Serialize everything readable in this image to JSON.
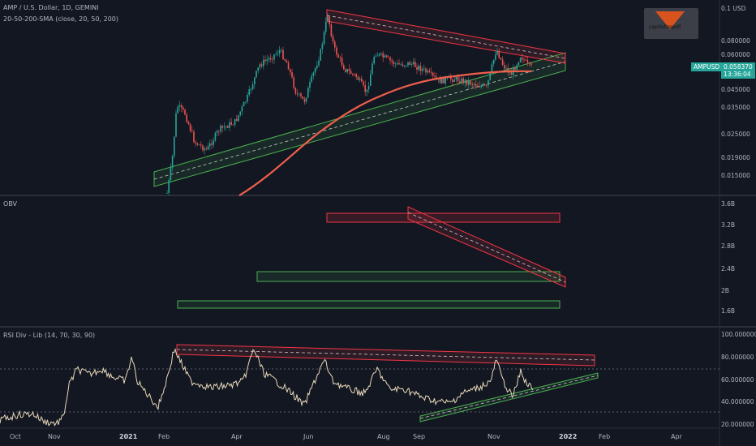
{
  "header": {
    "symbol": "AMP / U.S. Dollar, 1D, GEMINI",
    "indicator": "20-50-200-SMA (close, 20, 50, 200)",
    "currency": "USD"
  },
  "logo": {
    "text": "capitalizepoll"
  },
  "price_axis": {
    "ticks": [
      "0.1",
      "0.080000",
      "0.060000",
      "0.045000",
      "0.035000",
      "0.025000",
      "0.019000",
      "0.015000"
    ],
    "symbol_tag": "AMPUSD",
    "last_price": "0.058370",
    "countdown": "13:36:04",
    "tag_color": "#26a69a"
  },
  "obv_panel": {
    "title": "OBV",
    "ticks": [
      "3.6B",
      "3.2B",
      "2.8B",
      "2.4B",
      "2B",
      "1.6B"
    ]
  },
  "rsi_panel": {
    "title": "RSI Div - Lib (14, 70, 30, 90)",
    "ticks": [
      "100.000000",
      "80.000000",
      "60.000000",
      "40.000000",
      "20.000000"
    ]
  },
  "time_axis": {
    "labels": [
      {
        "text": "Oct",
        "bold": false
      },
      {
        "text": "Nov",
        "bold": false
      },
      {
        "text": "2021",
        "bold": true
      },
      {
        "text": "Feb",
        "bold": false
      },
      {
        "text": "Apr",
        "bold": false
      },
      {
        "text": "Jun",
        "bold": false
      },
      {
        "text": "Aug",
        "bold": false
      },
      {
        "text": "Sep",
        "bold": false
      },
      {
        "text": "Nov",
        "bold": false
      },
      {
        "text": "2022",
        "bold": true
      },
      {
        "text": "Feb",
        "bold": false
      },
      {
        "text": "Apr",
        "bold": false
      }
    ]
  },
  "colors": {
    "background": "#131722",
    "up_candle": "#26a69a",
    "down_candle": "#ef5350",
    "sma200": "#ef5f4c",
    "resistance": "#f23645",
    "support": "#4caf50",
    "obv_line": "#4fa3c7",
    "rsi_line": "#e8d8b8"
  }
}
